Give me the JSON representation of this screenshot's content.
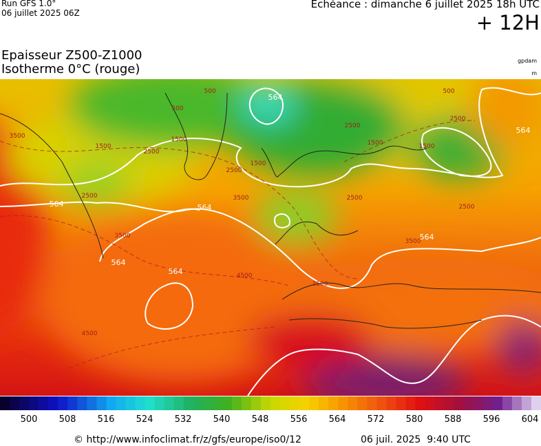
{
  "header": {
    "run": "Run GFS 1.0°",
    "run_date": "06 juillet 2025 06Z",
    "valid": "Echéance : dimanche 6 juillet 2025 18h UTC",
    "lead": "+ 12H"
  },
  "legend": {
    "title": "Epaisseur Z500-Z1000",
    "subtitle": "Isotherme 0°C (rouge)",
    "unit_thickness": "gpdam",
    "unit_iso": "m"
  },
  "map": {
    "contour_labels": [
      564,
      564,
      564,
      564,
      564,
      564,
      564,
      3500,
      2500,
      2500,
      2500,
      1500,
      1500,
      2500,
      3500,
      3500,
      2500,
      2500,
      2500,
      3500,
      4500,
      4500,
      3500,
      1500,
      1500,
      500,
      500,
      500,
      1500
    ]
  },
  "colorbar": {
    "ticks": [
      500,
      508,
      516,
      524,
      532,
      540,
      548,
      556,
      564,
      572,
      580,
      588,
      596,
      604
    ]
  },
  "footer": {
    "source": "© http://www.infoclimat.fr/z/gfs/europe/iso0/12",
    "generated": "06 juil. 2025  9:40 UTC"
  }
}
